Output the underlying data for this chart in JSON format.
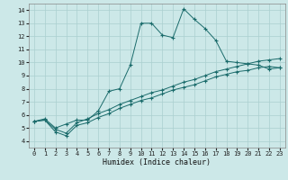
{
  "xlabel": "Humidex (Indice chaleur)",
  "bg_color": "#cce8e8",
  "line_color": "#1a6b6b",
  "grid_color": "#aacfcf",
  "xlim": [
    -0.5,
    23.5
  ],
  "ylim": [
    3.5,
    14.5
  ],
  "xticks": [
    0,
    1,
    2,
    3,
    4,
    5,
    6,
    7,
    8,
    9,
    10,
    11,
    12,
    13,
    14,
    15,
    16,
    17,
    18,
    19,
    20,
    21,
    22,
    23
  ],
  "yticks": [
    4,
    5,
    6,
    7,
    8,
    9,
    10,
    11,
    12,
    13,
    14
  ],
  "line1_x": [
    0,
    1,
    2,
    3,
    4,
    5,
    6,
    7,
    8,
    9,
    10,
    11,
    12,
    13,
    14,
    15,
    16,
    17,
    18,
    19,
    20,
    21,
    22,
    23
  ],
  "line1_y": [
    5.5,
    5.7,
    5.0,
    5.3,
    5.6,
    5.6,
    6.3,
    7.8,
    8.0,
    9.8,
    13.0,
    13.0,
    12.1,
    11.9,
    14.1,
    13.3,
    12.6,
    11.7,
    10.1,
    10.0,
    9.9,
    9.8,
    9.5,
    9.6
  ],
  "line2_x": [
    0,
    1,
    2,
    3,
    4,
    5,
    6,
    7,
    8,
    9,
    10,
    11,
    12,
    13,
    14,
    15,
    16,
    17,
    18,
    19,
    20,
    21,
    22,
    23
  ],
  "line2_y": [
    5.5,
    5.6,
    4.9,
    4.6,
    5.4,
    5.7,
    6.1,
    6.4,
    6.8,
    7.1,
    7.4,
    7.7,
    7.9,
    8.2,
    8.5,
    8.7,
    9.0,
    9.3,
    9.5,
    9.7,
    9.9,
    10.1,
    10.2,
    10.3
  ],
  "line3_x": [
    0,
    1,
    2,
    3,
    4,
    5,
    6,
    7,
    8,
    9,
    10,
    11,
    12,
    13,
    14,
    15,
    16,
    17,
    18,
    19,
    20,
    21,
    22,
    23
  ],
  "line3_y": [
    5.5,
    5.6,
    4.7,
    4.4,
    5.2,
    5.4,
    5.8,
    6.1,
    6.5,
    6.8,
    7.1,
    7.3,
    7.6,
    7.9,
    8.1,
    8.3,
    8.6,
    8.9,
    9.1,
    9.3,
    9.4,
    9.6,
    9.7,
    9.6
  ]
}
